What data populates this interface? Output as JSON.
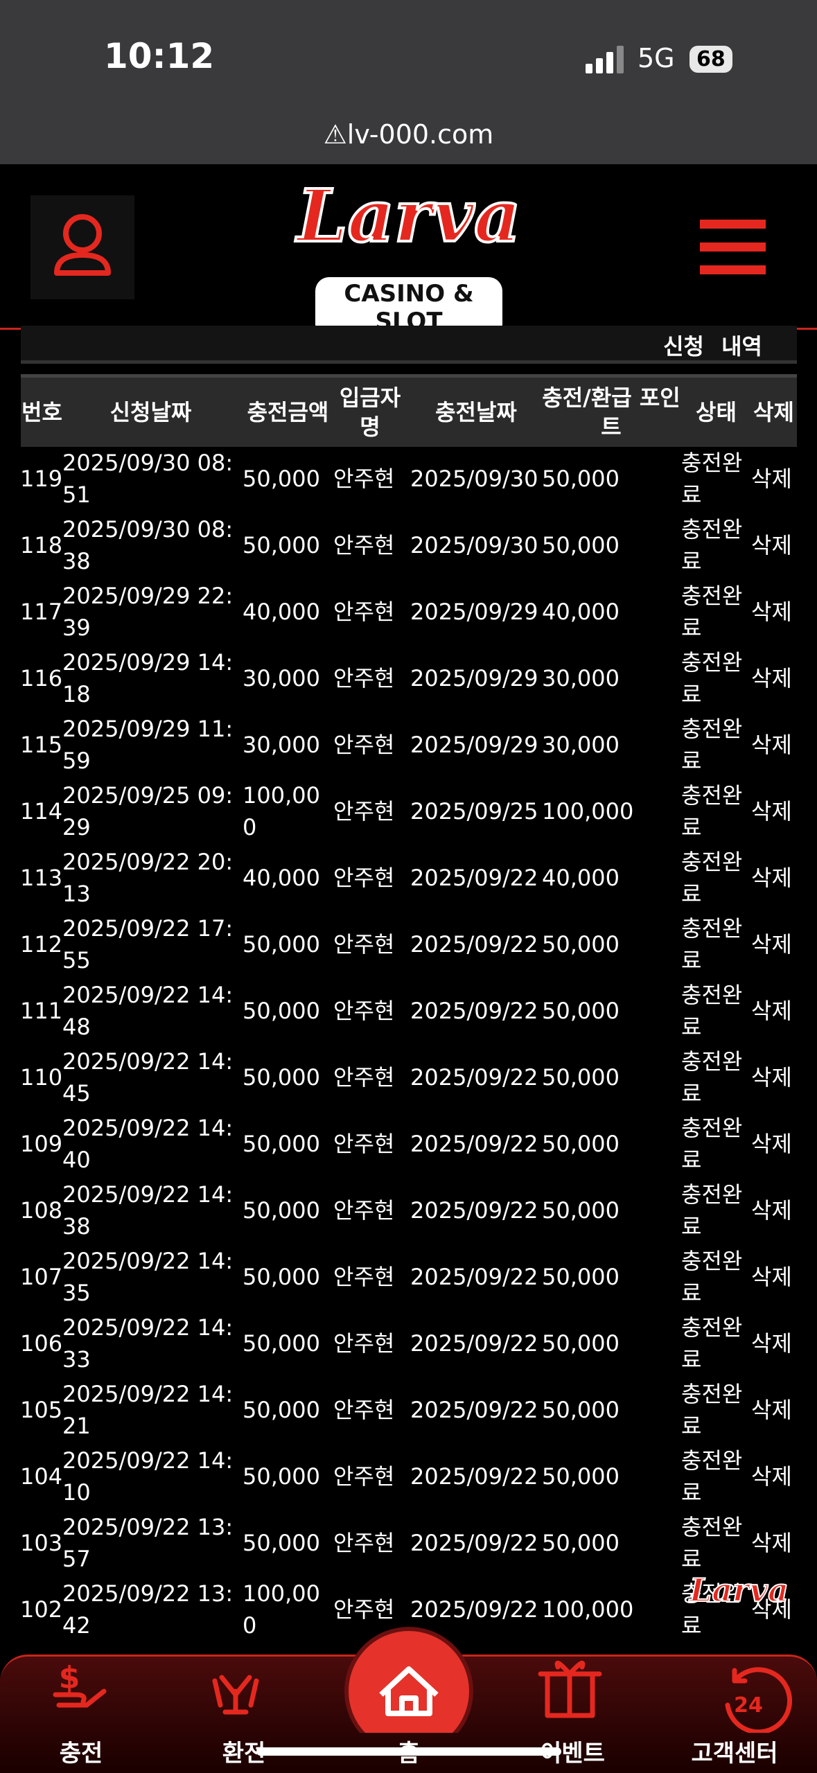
{
  "status_bar": {
    "time": "10:12",
    "network": "5G",
    "battery": "68"
  },
  "browser": {
    "url": "lv-000.com"
  },
  "header": {
    "logo": "Larva",
    "logo_sub": "CASINO & SLOT"
  },
  "section_title": "신청 내역",
  "table": {
    "columns": [
      "번호",
      "신청날짜",
      "충전금액",
      "입금자명",
      "충전날짜",
      "충전/환급 포인트",
      "상태",
      "삭제"
    ],
    "rows": [
      [
        "119",
        "2025/09/30 08:51",
        "50,000",
        "안주현",
        "2025/09/30",
        "50,000",
        "충전완료",
        "삭제"
      ],
      [
        "118",
        "2025/09/30 08:38",
        "50,000",
        "안주현",
        "2025/09/30",
        "50,000",
        "충전완료",
        "삭제"
      ],
      [
        "117",
        "2025/09/29 22:39",
        "40,000",
        "안주현",
        "2025/09/29",
        "40,000",
        "충전완료",
        "삭제"
      ],
      [
        "116",
        "2025/09/29 14:18",
        "30,000",
        "안주현",
        "2025/09/29",
        "30,000",
        "충전완료",
        "삭제"
      ],
      [
        "115",
        "2025/09/29 11:59",
        "30,000",
        "안주현",
        "2025/09/29",
        "30,000",
        "충전완료",
        "삭제"
      ],
      [
        "114",
        "2025/09/25 09:29",
        "100,000",
        "안주현",
        "2025/09/25",
        "100,000",
        "충전완료",
        "삭제"
      ],
      [
        "113",
        "2025/09/22 20:13",
        "40,000",
        "안주현",
        "2025/09/22",
        "40,000",
        "충전완료",
        "삭제"
      ],
      [
        "112",
        "2025/09/22 17:55",
        "50,000",
        "안주현",
        "2025/09/22",
        "50,000",
        "충전완료",
        "삭제"
      ],
      [
        "111",
        "2025/09/22 14:48",
        "50,000",
        "안주현",
        "2025/09/22",
        "50,000",
        "충전완료",
        "삭제"
      ],
      [
        "110",
        "2025/09/22 14:45",
        "50,000",
        "안주현",
        "2025/09/22",
        "50,000",
        "충전완료",
        "삭제"
      ],
      [
        "109",
        "2025/09/22 14:40",
        "50,000",
        "안주현",
        "2025/09/22",
        "50,000",
        "충전완료",
        "삭제"
      ],
      [
        "108",
        "2025/09/22 14:38",
        "50,000",
        "안주현",
        "2025/09/22",
        "50,000",
        "충전완료",
        "삭제"
      ],
      [
        "107",
        "2025/09/22 14:35",
        "50,000",
        "안주현",
        "2025/09/22",
        "50,000",
        "충전완료",
        "삭제"
      ],
      [
        "106",
        "2025/09/22 14:33",
        "50,000",
        "안주현",
        "2025/09/22",
        "50,000",
        "충전완료",
        "삭제"
      ],
      [
        "105",
        "2025/09/22 14:21",
        "50,000",
        "안주현",
        "2025/09/22",
        "50,000",
        "충전완료",
        "삭제"
      ],
      [
        "104",
        "2025/09/22 14:10",
        "50,000",
        "안주현",
        "2025/09/22",
        "50,000",
        "충전완료",
        "삭제"
      ],
      [
        "103",
        "2025/09/22 13:57",
        "50,000",
        "안주현",
        "2025/09/22",
        "50,000",
        "충전완료",
        "삭제"
      ],
      [
        "102",
        "2025/09/22 13:42",
        "100,000",
        "안주현",
        "2025/09/22",
        "100,000",
        "충전완료",
        "삭제"
      ]
    ]
  },
  "floating_logo": "Larva",
  "bottom_nav": [
    "충전",
    "환전",
    "홈",
    "이벤트",
    "고객센터"
  ]
}
